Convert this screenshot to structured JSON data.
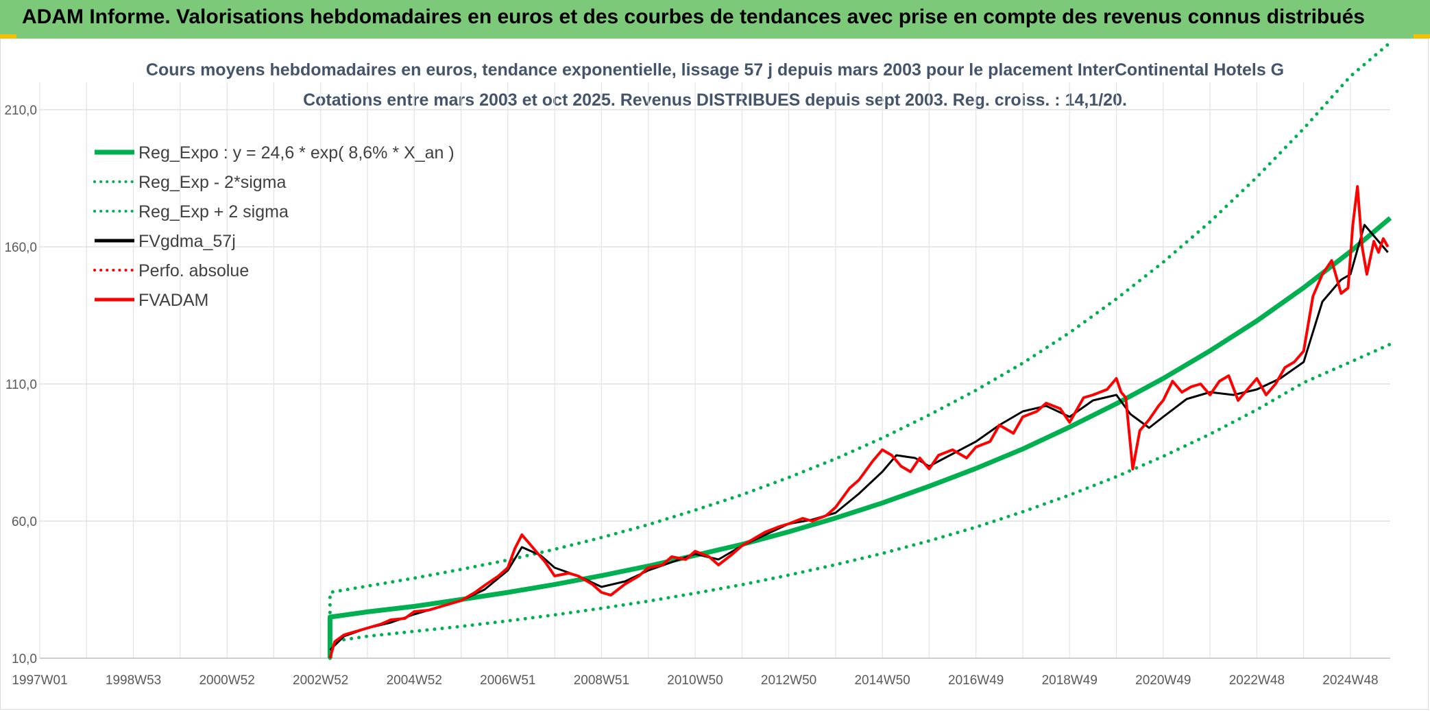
{
  "banner": {
    "title": "ADAM Informe. Valorisations hebdomadaires en euros et des courbes de tendances avec prise en compte des revenus connus distribués"
  },
  "colors": {
    "banner_bg": "#7dc97a",
    "regression": "#00b050",
    "smoothed": "#000000",
    "price": "#ff0000",
    "title_text": "#44546a"
  },
  "chart_data": {
    "type": "line",
    "title": "Cours moyens hebdomadaires en euros, tendance exponentielle, lissage 57 j depuis mars 2003 pour le placement InterContinental Hotels G",
    "subtitle": "Cotations entre mars 2003 et oct 2025. Revenus DISTRIBUES depuis sept 2003. Reg. croiss. : 14,1/20.",
    "xlabel": "",
    "ylabel": "",
    "x_range": [
      1997.0,
      2025.85
    ],
    "ylim": [
      10,
      220
    ],
    "y_ticks": [
      "10,0",
      "60,0",
      "110,0",
      "160,0",
      "210,0"
    ],
    "y_tick_values": [
      10,
      60,
      110,
      160,
      210
    ],
    "x_tick_labels": [
      "1997W01",
      "1998W53",
      "2000W52",
      "2002W52",
      "2004W52",
      "2006W51",
      "2008W51",
      "2010W50",
      "2012W50",
      "2014W50",
      "2016W49",
      "2018W49",
      "2020W49",
      "2022W48",
      "2024W48"
    ],
    "x_tick_values": [
      1997.0,
      1999.0,
      2001.0,
      2003.0,
      2005.0,
      2007.0,
      2009.0,
      2011.0,
      2013.0,
      2015.0,
      2017.0,
      2019.0,
      2021.0,
      2023.0,
      2025.0
    ],
    "grid": true,
    "legend_position": "top-left",
    "legend": [
      {
        "label": "Reg_Expo : y = 24,6 * exp( 8,6% *  X_an )",
        "style": "solid",
        "color": "#00b050"
      },
      {
        "label": "Reg_Exp - 2*sigma",
        "style": "dotted",
        "color": "#00b050"
      },
      {
        "label": "Reg_Exp + 2 sigma",
        "style": "dotted",
        "color": "#00b050"
      },
      {
        "label": "FVgdma_57j",
        "style": "solid",
        "color": "#000000"
      },
      {
        "label": "Perfo. absolue",
        "style": "dotted",
        "color": "#ff0000"
      },
      {
        "label": "FVADAM",
        "style": "solid",
        "color": "#ff0000"
      }
    ],
    "series": [
      {
        "name": "Reg_Expo : y = 24,6 * exp( 8,6% *  X_an )",
        "x": [
          2003.2,
          2003.2,
          2004,
          2005,
          2006,
          2007,
          2008,
          2009,
          2010,
          2011,
          2012,
          2013,
          2014,
          2015,
          2016,
          2017,
          2018,
          2019,
          2020,
          2021,
          2022,
          2023,
          2024,
          2025,
          2025.85
        ],
        "y": [
          10,
          25,
          26.9,
          28.9,
          31.4,
          34,
          36.9,
          40.1,
          43.6,
          47.5,
          51.5,
          56.1,
          61.1,
          66.6,
          72.7,
          79.2,
          86.3,
          94.3,
          102.8,
          112,
          122.1,
          133,
          145.1,
          158.3,
          170.5
        ]
      },
      {
        "name": "Reg_Exp - 2*sigma",
        "x": [
          2003.2,
          2003.2,
          2004,
          2005,
          2006,
          2007,
          2008,
          2009,
          2010,
          2011,
          2012,
          2013,
          2014,
          2015,
          2016,
          2017,
          2018,
          2019,
          2020,
          2021,
          2022,
          2023,
          2024,
          2025,
          2025.85
        ],
        "y": [
          10,
          16,
          18,
          19.8,
          21.6,
          23.6,
          25.8,
          28.2,
          30.8,
          33.7,
          36.8,
          40.3,
          44.1,
          48.2,
          52.8,
          57.8,
          63.4,
          69.5,
          76.2,
          83.6,
          91.7,
          100.6,
          110.5,
          118,
          124.5
        ]
      },
      {
        "name": "Reg_Exp + 2 sigma",
        "x": [
          2003.2,
          2003.2,
          2004,
          2005,
          2006,
          2007,
          2008,
          2009,
          2010,
          2011,
          2012,
          2013,
          2014,
          2015,
          2016,
          2017,
          2018,
          2019,
          2020,
          2021,
          2022,
          2023,
          2024,
          2025,
          2025.85
        ],
        "y": [
          10,
          34,
          36.3,
          39.2,
          42.4,
          45.8,
          49.7,
          54,
          58.7,
          64,
          69.6,
          75.9,
          82.7,
          90.3,
          98.7,
          107.7,
          117.6,
          128.7,
          141,
          154.4,
          169.1,
          185.4,
          203.1,
          222.2,
          234.5
        ]
      },
      {
        "name": "FVgdma_57j",
        "x": [
          2003.2,
          2003.5,
          2004,
          2004.5,
          2005,
          2005.5,
          2006,
          2006.5,
          2007,
          2007.3,
          2007.7,
          2008,
          2008.5,
          2009,
          2009.5,
          2010,
          2010.5,
          2011,
          2011.5,
          2012,
          2012.5,
          2013,
          2013.5,
          2014,
          2014.5,
          2015,
          2015.3,
          2015.7,
          2016,
          2016.5,
          2017,
          2017.5,
          2018,
          2018.5,
          2019,
          2019.5,
          2020,
          2020.3,
          2020.7,
          2021,
          2021.5,
          2022,
          2022.5,
          2023,
          2023.5,
          2024,
          2024.4,
          2024.8,
          2025,
          2025.3,
          2025.8
        ],
        "y": [
          13,
          18,
          21,
          23,
          26,
          28.5,
          31,
          35,
          42,
          50.5,
          47.5,
          43,
          40,
          36,
          38,
          42,
          45,
          48,
          46,
          51,
          55,
          59,
          60.5,
          63,
          70,
          78,
          84,
          83,
          80,
          84.5,
          89,
          95,
          100,
          102,
          98,
          104,
          106,
          99,
          94,
          98,
          104.5,
          107,
          106,
          108,
          112,
          118,
          140,
          148,
          150,
          168,
          158
        ]
      },
      {
        "name": "FVADAM",
        "x": [
          2003.2,
          2003.3,
          2003.5,
          2003.8,
          2004,
          2004.3,
          2004.5,
          2004.8,
          2005,
          2005.3,
          2005.5,
          2005.8,
          2006,
          2006.3,
          2006.5,
          2006.8,
          2007,
          2007.15,
          2007.3,
          2007.45,
          2007.6,
          2007.8,
          2008,
          2008.3,
          2008.5,
          2008.8,
          2009,
          2009.2,
          2009.5,
          2009.8,
          2010,
          2010.3,
          2010.5,
          2010.8,
          2011,
          2011.3,
          2011.5,
          2011.8,
          2012,
          2012.3,
          2012.5,
          2012.8,
          2013,
          2013.3,
          2013.5,
          2013.8,
          2014,
          2014.3,
          2014.5,
          2014.8,
          2015,
          2015.2,
          2015.4,
          2015.6,
          2015.8,
          2016,
          2016.2,
          2016.5,
          2016.8,
          2017,
          2017.3,
          2017.5,
          2017.8,
          2018,
          2018.3,
          2018.5,
          2018.8,
          2019,
          2019.3,
          2019.5,
          2019.8,
          2020,
          2020.1,
          2020.2,
          2020.35,
          2020.5,
          2020.7,
          2020.9,
          2021,
          2021.2,
          2021.4,
          2021.6,
          2021.8,
          2022,
          2022.2,
          2022.4,
          2022.6,
          2022.8,
          2023,
          2023.2,
          2023.4,
          2023.6,
          2023.8,
          2024,
          2024.2,
          2024.4,
          2024.6,
          2024.8,
          2024.95,
          2025.05,
          2025.15,
          2025.25,
          2025.35,
          2025.5,
          2025.6,
          2025.7,
          2025.8
        ],
        "y": [
          10,
          16,
          18.5,
          20,
          21,
          22.5,
          24,
          24.5,
          27,
          27.5,
          28.5,
          30,
          31,
          34,
          36.5,
          40,
          43,
          50,
          55,
          52,
          49,
          45,
          40,
          41,
          40,
          37,
          34,
          33,
          37,
          40,
          43,
          44,
          47,
          46,
          49,
          47,
          44,
          48,
          51,
          54,
          56,
          58,
          59,
          61,
          60,
          62,
          65,
          72,
          75,
          82,
          86,
          84,
          80,
          78,
          83,
          79,
          84,
          86,
          83,
          87,
          89,
          95,
          92,
          98,
          100,
          103,
          101,
          96,
          105,
          106,
          108,
          112,
          107,
          105,
          79,
          93,
          97,
          102,
          104,
          111,
          107,
          109,
          110,
          106,
          111,
          113,
          104,
          108,
          112,
          106,
          110,
          116,
          118,
          122,
          142,
          150,
          155,
          143,
          145,
          168,
          182,
          160,
          150,
          162,
          158,
          163,
          160
        ]
      }
    ]
  }
}
